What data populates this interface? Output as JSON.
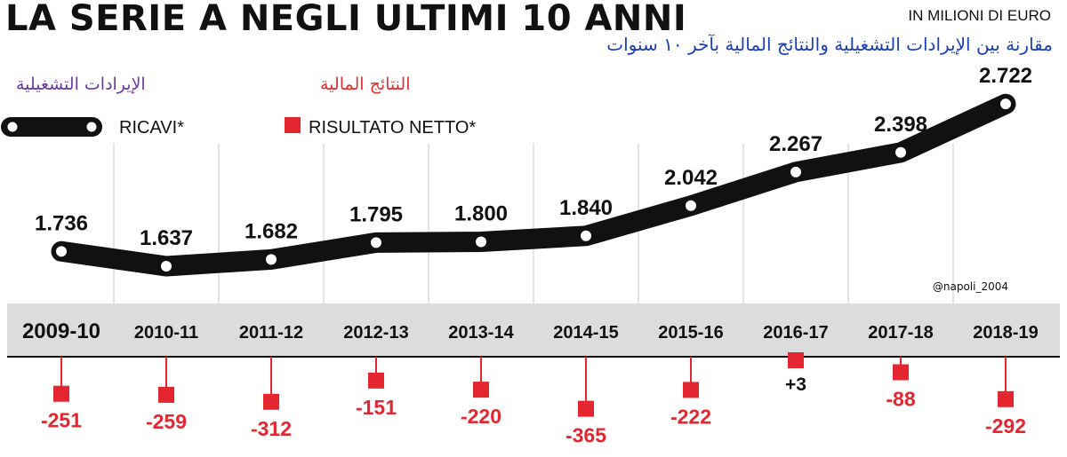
{
  "header": {
    "title": "LA SERIE A NEGLI ULTIMI 10 ANNI",
    "unit": "IN MILIONI DI EURO",
    "subtitle_ar": "مقارنة بين الإيرادات التشغيلية والنتائج المالية بآخر ١٠ سنوات",
    "label_revenue_ar": "الإيرادات التشغيلية",
    "label_net_ar": "النتائج المالية"
  },
  "legend": {
    "revenue": "RICAVI*",
    "net": "RISULTATO NETTO*"
  },
  "credit": "@napoli_2004",
  "colors": {
    "revenue_line": "#111111",
    "net_marker": "#e3262f",
    "season_band": "#dcdcdc"
  },
  "chart_data": {
    "type": "line",
    "categories": [
      "2009-10",
      "2010-11",
      "2011-12",
      "2012-13",
      "2013-14",
      "2014-15",
      "2015-16",
      "2016-17",
      "2017-18",
      "2018-19"
    ],
    "series": [
      {
        "name": "RICAVI*",
        "values": [
          1736,
          1637,
          1682,
          1795,
          1800,
          1840,
          2042,
          2267,
          2398,
          2722
        ],
        "labels": [
          "1.736",
          "1.637",
          "1.682",
          "1.795",
          "1.800",
          "1.840",
          "2.042",
          "2.267",
          "2.398",
          "2.722"
        ]
      },
      {
        "name": "RISULTATO NETTO*",
        "values": [
          -251,
          -259,
          -312,
          -151,
          -220,
          -365,
          -222,
          3,
          -88,
          -292
        ],
        "labels": [
          "-251",
          "-259",
          "-312",
          "-151",
          "-220",
          "-365",
          "-222",
          "+3",
          "-88",
          "-292"
        ]
      }
    ],
    "unit": "IN MILIONI DI EURO",
    "legend_position": "top-left",
    "grid": true
  }
}
